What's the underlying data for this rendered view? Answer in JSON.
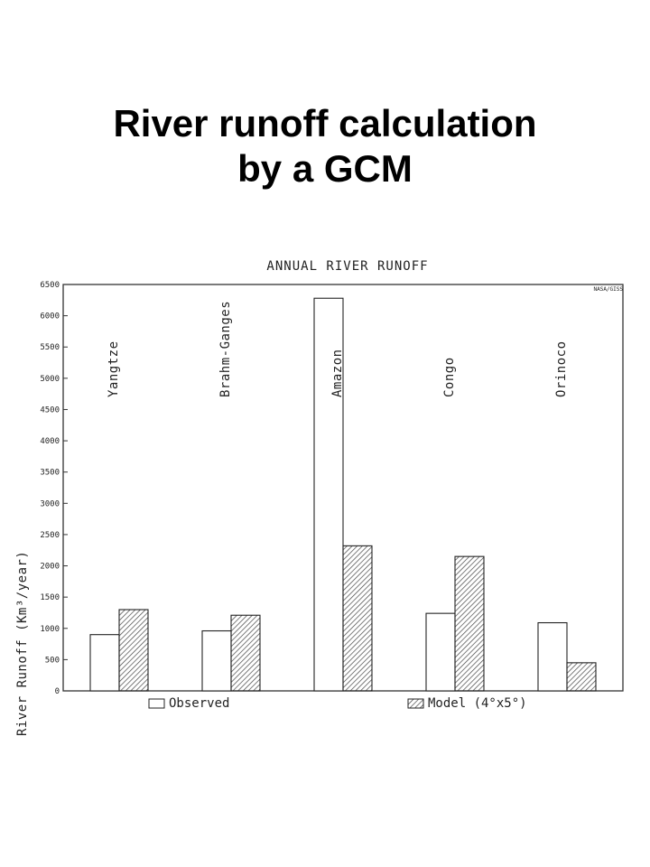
{
  "slide": {
    "title_line1": "River runoff calculation",
    "title_line2": "by a GCM"
  },
  "chart_data": {
    "type": "bar",
    "title": "ANNUAL RIVER RUNOFF",
    "corner_tag": "NASA/GISS",
    "ylabel": "River Runoff (Km³/year)",
    "xlabel": "",
    "categories": [
      "Yangtze",
      "Brahm-Ganges",
      "Amazon",
      "Congo",
      "Orinoco"
    ],
    "series": [
      {
        "name": "Observed",
        "pattern": "open",
        "values": [
          900,
          960,
          6280,
          1240,
          1090
        ]
      },
      {
        "name": "Model (4°x5°)",
        "pattern": "hatched",
        "values": [
          1300,
          1210,
          2320,
          2150,
          450
        ]
      }
    ],
    "yticks": [
      0,
      500,
      1000,
      1500,
      2000,
      2500,
      3000,
      3500,
      4000,
      4500,
      5000,
      5500,
      6000,
      6500
    ],
    "ylim": [
      0,
      6500
    ],
    "grid": false,
    "legend_position": "bottom",
    "colors": {
      "bar_stroke": "#222222",
      "hatch": "#444444",
      "axis": "#333333"
    }
  }
}
